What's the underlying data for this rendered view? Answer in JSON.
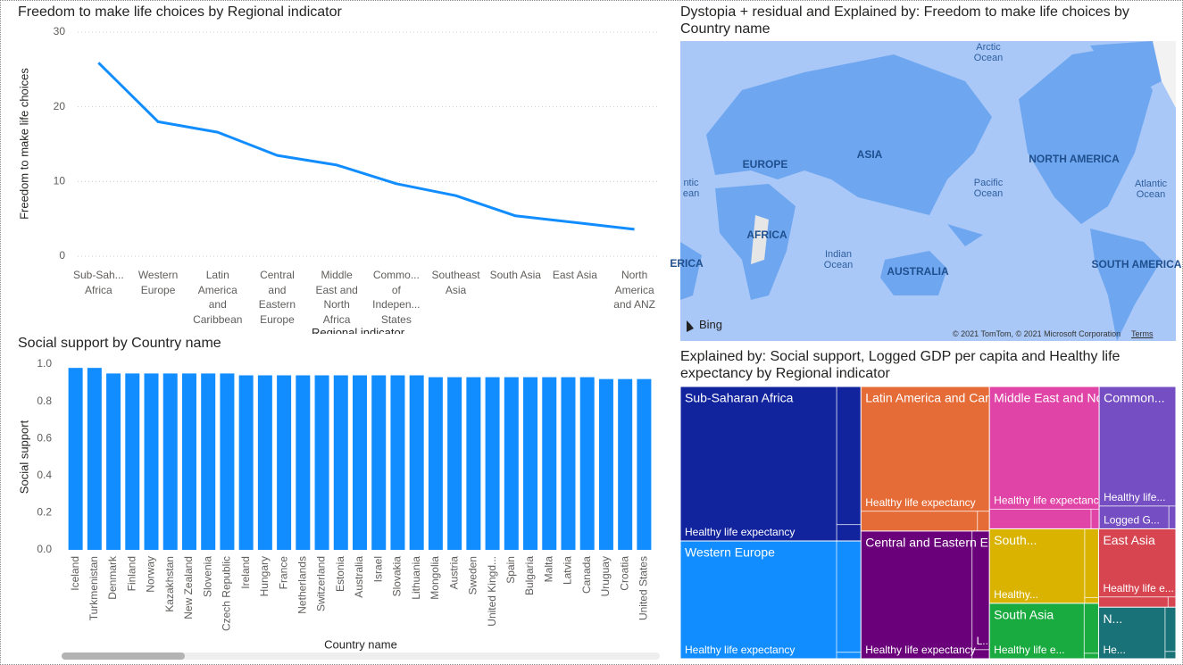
{
  "chart_data": [
    {
      "type": "line",
      "title": "Freedom to make life choices by Regional indicator",
      "y_label": "Freedom to make life choices",
      "x_label": "Regional indicator",
      "categories": [
        "Sub-Sah... Africa",
        "Western Europe",
        "Latin America and Caribbean",
        "Central and Eastern Europe",
        "Middle East and North Africa",
        "Commo... of Indepen... States",
        "Southeast Asia",
        "South Asia",
        "East Asia",
        "North America and ANZ"
      ],
      "values": [
        25.9,
        18.0,
        16.6,
        13.5,
        12.2,
        9.7,
        8.1,
        5.4,
        4.5,
        3.6
      ],
      "color": "#118dff",
      "ylim": [
        0,
        30
      ],
      "yticks": [
        0,
        10,
        20,
        30
      ],
      "grid": true
    },
    {
      "type": "map",
      "title": "Dystopia + residual and Explained by: Freedom to make life choices by Country name",
      "labels": [
        "Arctic Ocean",
        "EUROPE",
        "ASIA",
        "NORTH AMERICA",
        "ntic ean",
        "Pacific Ocean",
        "Atlantic Ocean",
        "AFRICA",
        "ERICA",
        "Indian Ocean",
        "AUSTRALIA",
        "SOUTH AMERICA"
      ],
      "logo": "Bing",
      "attribution": "© 2021 TomTom, © 2021 Microsoft Corporation",
      "terms": "Terms"
    },
    {
      "type": "bar",
      "title": "Social support by Country name",
      "y_label": "Social support",
      "x_label": "Country name",
      "categories": [
        "Iceland",
        "Turkmenistan",
        "Denmark",
        "Finland",
        "Norway",
        "Kazakhstan",
        "New Zealand",
        "Slovenia",
        "Czech Republic",
        "Ireland",
        "Hungary",
        "France",
        "Netherlands",
        "Switzerland",
        "Estonia",
        "Australia",
        "Israel",
        "Slovakia",
        "Lithuania",
        "Mongolia",
        "Austria",
        "Sweden",
        "United Kingd...",
        "Spain",
        "Bulgaria",
        "Malta",
        "Latvia",
        "Canada",
        "Uruguay",
        "Croatia",
        "United States"
      ],
      "values": [
        0.98,
        0.98,
        0.95,
        0.95,
        0.95,
        0.95,
        0.95,
        0.95,
        0.95,
        0.94,
        0.94,
        0.94,
        0.94,
        0.94,
        0.94,
        0.94,
        0.94,
        0.94,
        0.94,
        0.93,
        0.93,
        0.93,
        0.93,
        0.93,
        0.93,
        0.93,
        0.93,
        0.93,
        0.92,
        0.92,
        0.92
      ],
      "color": "#118dff",
      "ylim": [
        0,
        1
      ],
      "yticks": [
        {
          "value": 0,
          "label": "0.0"
        },
        {
          "value": 0.2,
          "label": "0.2"
        },
        {
          "value": 0.4,
          "label": "0.4"
        },
        {
          "value": 0.6,
          "label": "0.6"
        },
        {
          "value": 0.8,
          "label": "0.8"
        },
        {
          "value": 1,
          "label": "1.0"
        }
      ],
      "grid": false
    },
    {
      "type": "treemap",
      "title": "Explained by: Social support, Logged GDP per capita and Healthy life expectancy by Regional indicator",
      "groups": [
        {
          "name": "Sub-Saharan Africa",
          "color": "#12239e",
          "value": 35.0,
          "children": [
            {
              "label": "Healthy life expectancy",
              "value": 30.3
            },
            {
              "value": 4.2
            },
            {
              "value": 0.5
            }
          ]
        },
        {
          "name": "Western Europe",
          "color": "#118dff",
          "value": 26.7,
          "children": [
            {
              "label": "Healthy life expectancy",
              "value": 23.1
            },
            {
              "value": 3.4
            },
            {
              "value": 0.2
            }
          ]
        },
        {
          "name": "Latin America and Caribbean",
          "color": "#e66c37",
          "value": 23.3,
          "children": [
            {
              "label": "Healthy life expectancy",
              "value": 20.1
            },
            {
              "value": 2.9
            },
            {
              "value": 0.3
            }
          ]
        },
        {
          "name": "Central and Eastern Europe",
          "color": "#6b007b",
          "value": 20.6,
          "children": [
            {
              "label": "Healthy life expectancy",
              "value": 17.8
            },
            {
              "label": "L...",
              "value": 2.6
            },
            {
              "value": 0.2
            }
          ]
        },
        {
          "name": "Middle East and North Africa",
          "color": "#e044a7",
          "value": 19.6,
          "children": [
            {
              "label": "Healthy life expectancy",
              "value": 16.9
            },
            {
              "value": 2.5
            },
            {
              "value": 0.2
            }
          ]
        },
        {
          "name": "Common...",
          "color": "#744ec2",
          "value": 13.7,
          "children": [
            {
              "label": "Healthy life...",
              "value": 11.5
            },
            {
              "label": "Logged G...",
              "value": 2.0
            },
            {
              "value": 0.2
            }
          ]
        },
        {
          "name": "South...",
          "color": "#d9b300",
          "value": 10.2,
          "children": [
            {
              "label": "Healthy...",
              "value": 8.9
            },
            {
              "value": 1.2
            },
            {
              "value": 0.1
            }
          ]
        },
        {
          "name": "South Asia",
          "color": "#1aab40",
          "value": 7.6,
          "children": [
            {
              "label": "Healthy life e...",
              "value": 6.6
            },
            {
              "value": 0.9
            },
            {
              "value": 0.1
            }
          ]
        },
        {
          "name": "East Asia",
          "color": "#d64550",
          "value": 7.6,
          "children": [
            {
              "label": "Healthy life e...",
              "value": 6.6
            },
            {
              "value": 0.9
            },
            {
              "value": 0.1
            }
          ]
        },
        {
          "name": "N...",
          "color": "#197278",
          "value": 5.0,
          "children": [
            {
              "label": "He...",
              "value": 4.3
            },
            {
              "value": 0.6
            },
            {
              "value": 0.1
            }
          ]
        }
      ]
    }
  ]
}
